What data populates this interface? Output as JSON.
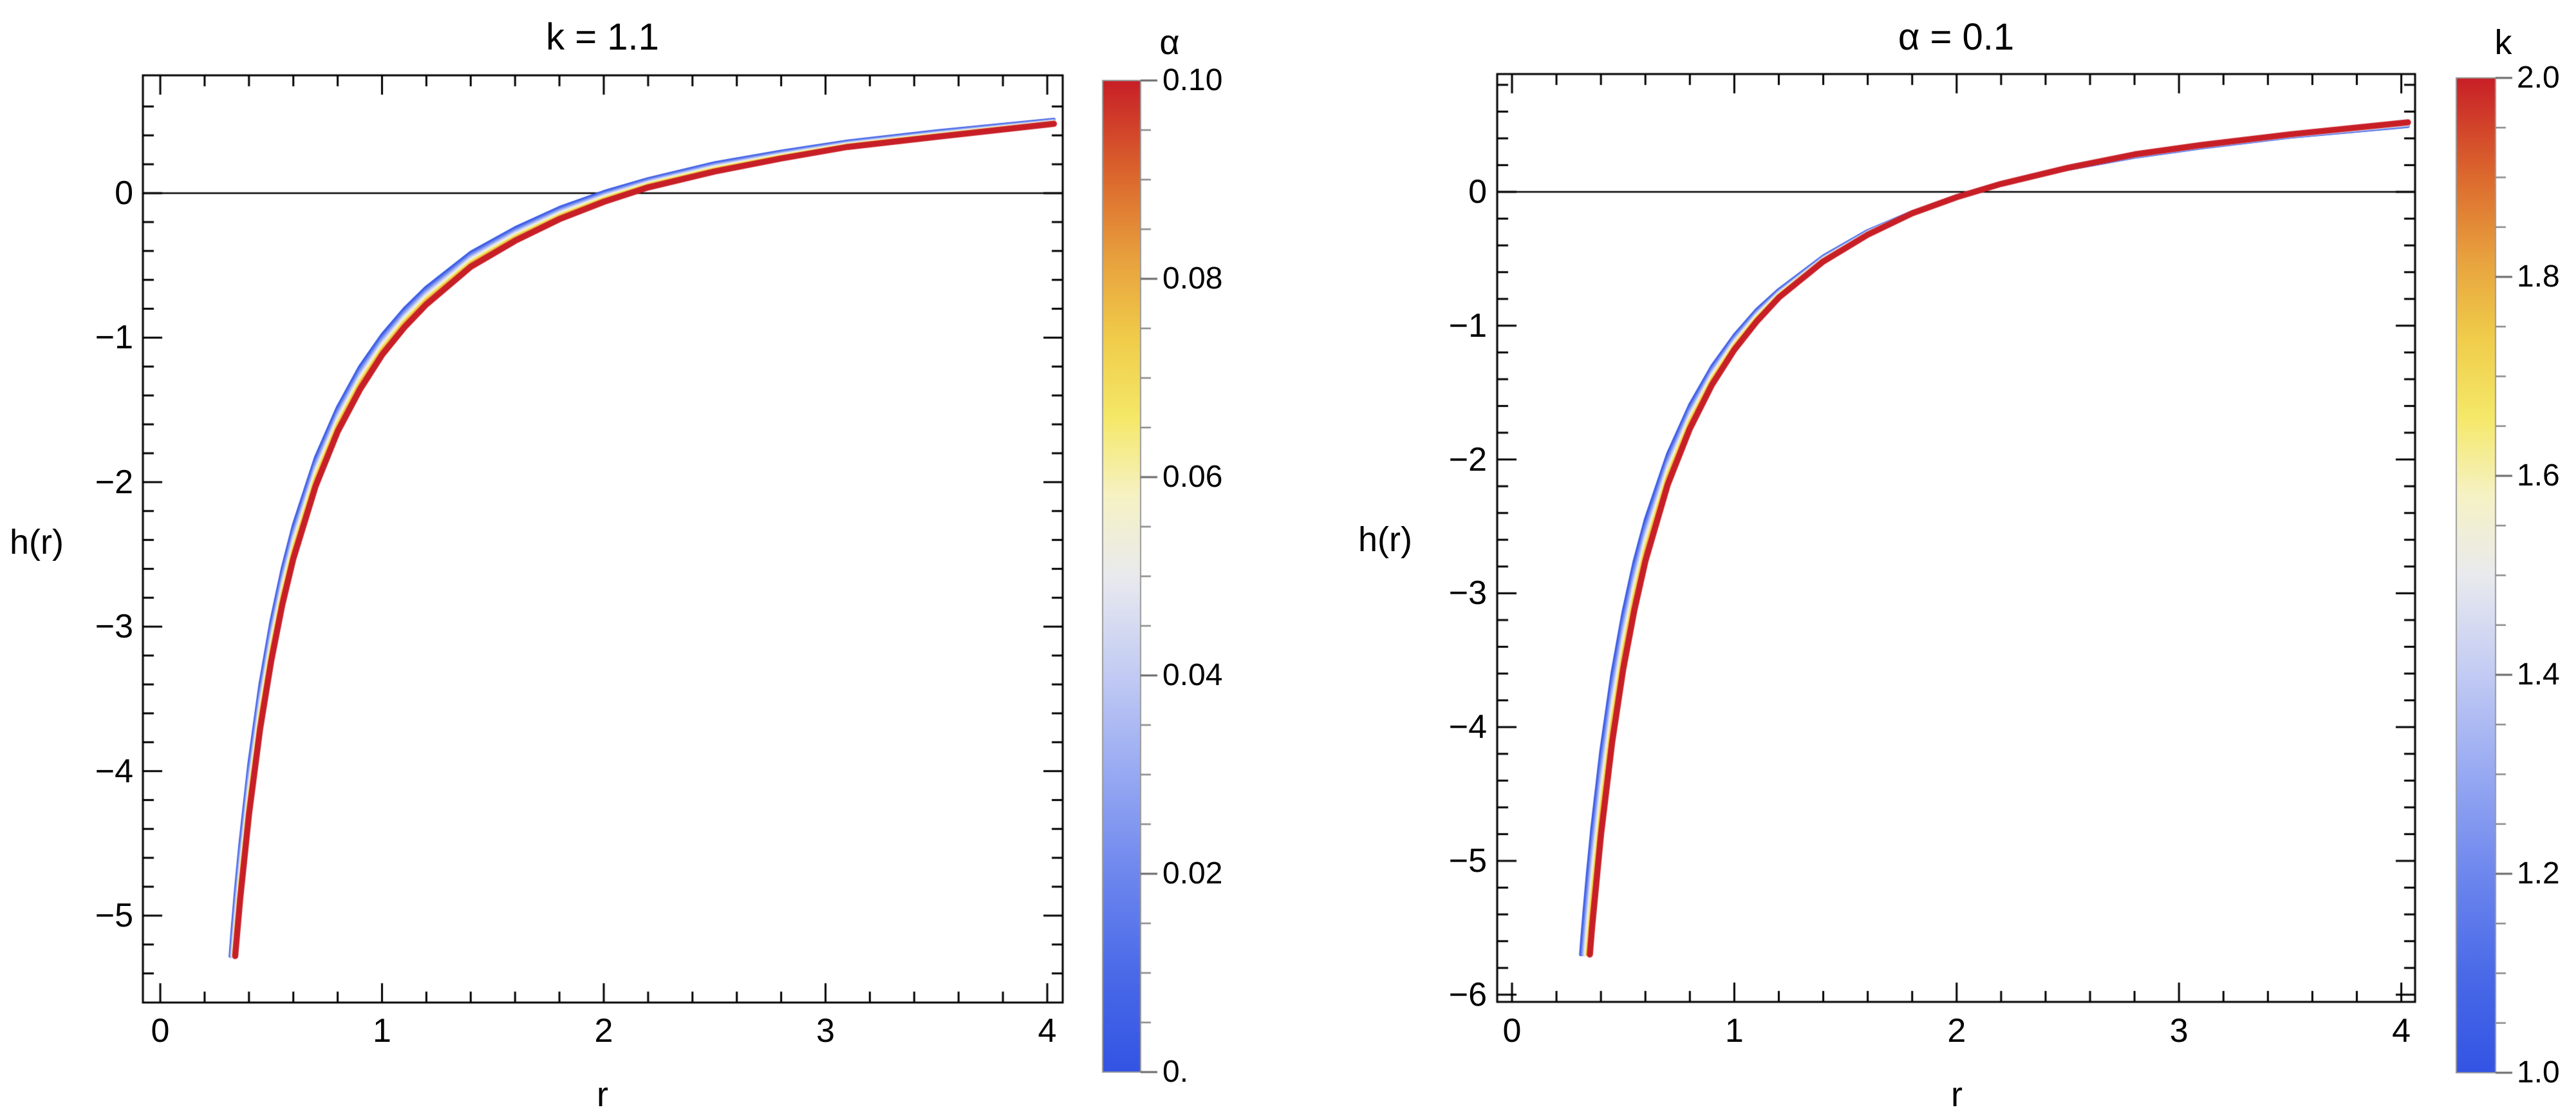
{
  "figure": {
    "background": "#ffffff",
    "text_color": "#000000",
    "colormap": [
      [
        0.0,
        "#3354e3"
      ],
      [
        0.1,
        "#4a6ae8"
      ],
      [
        0.2,
        "#6e87ee"
      ],
      [
        0.3,
        "#97a9f2"
      ],
      [
        0.4,
        "#c2cbf4"
      ],
      [
        0.5,
        "#e9eaee"
      ],
      [
        0.58,
        "#f6f2c5"
      ],
      [
        0.66,
        "#f5e868"
      ],
      [
        0.74,
        "#f0cc4a"
      ],
      [
        0.82,
        "#e8a13e"
      ],
      [
        0.9,
        "#dc6a2e"
      ],
      [
        1.0,
        "#c81f27"
      ]
    ],
    "panels": [
      {
        "id": "left",
        "title": "k = 1.1",
        "x_label": "r",
        "y_label": "h(r)",
        "x_tick_values": [
          0,
          1,
          2,
          3,
          4
        ],
        "x_tick_labels": [
          "0",
          "1",
          "2",
          "3",
          "4"
        ],
        "y_tick_values": [
          0,
          -1,
          -2,
          -3,
          -4,
          -5
        ],
        "y_tick_labels": [
          "0",
          "−1",
          "−2",
          "−3",
          "−4",
          "−5"
        ],
        "colorbar": {
          "label": "α",
          "range": [
            0,
            0.1
          ],
          "tick_values": [
            0.1,
            0.08,
            0.06,
            0.04,
            0.02,
            0
          ],
          "tick_labels": [
            "0.10",
            "0.08",
            "0.06",
            "0.04",
            "0.02",
            "0."
          ]
        },
        "chart_data": {
          "type": "line",
          "title": "k = 1.1",
          "xlabel": "r",
          "ylabel": "h(r)",
          "xlim": [
            -0.08,
            4.07
          ],
          "ylim": [
            -5.6,
            0.81
          ],
          "zero_line": 0,
          "clip_min_h": -5.28,
          "bundle_note": "continuum of nearly-overlapping curves for α from 0 (blue) to 0.1 (red), colored by colorbar",
          "x": [
            0.305,
            0.315,
            0.325,
            0.34,
            0.36,
            0.4,
            0.45,
            0.5,
            0.55,
            0.6,
            0.7,
            0.8,
            0.9,
            1.0,
            1.1,
            1.2,
            1.4,
            1.6,
            1.8,
            2.0,
            2.2,
            2.5,
            2.8,
            3.1,
            3.5,
            4.03
          ],
          "series": [
            {
              "name": "α = 0",
              "color": "#3354e3",
              "values": [
                -5.49,
                -5.29,
                -5.09,
                -4.82,
                -4.5,
                -3.95,
                -3.4,
                -2.96,
                -2.6,
                -2.3,
                -1.83,
                -1.48,
                -1.2,
                -0.98,
                -0.8,
                -0.65,
                -0.41,
                -0.24,
                -0.1,
                0.01,
                0.1,
                0.21,
                0.29,
                0.36,
                0.43,
                0.51
              ]
            },
            {
              "name": "α = 0.1",
              "color": "#c81f27",
              "values": [
                -5.95,
                -5.73,
                -5.52,
                -5.24,
                -4.89,
                -4.3,
                -3.71,
                -3.24,
                -2.85,
                -2.53,
                -2.03,
                -1.65,
                -1.36,
                -1.12,
                -0.93,
                -0.77,
                -0.51,
                -0.33,
                -0.18,
                -0.06,
                0.04,
                0.15,
                0.24,
                0.32,
                0.39,
                0.48
              ]
            }
          ]
        }
      },
      {
        "id": "right",
        "title": "α = 0.1",
        "x_label": "r",
        "y_label": "h(r)",
        "x_tick_values": [
          0,
          1,
          2,
          3,
          4
        ],
        "x_tick_labels": [
          "0",
          "1",
          "2",
          "3",
          "4"
        ],
        "y_tick_values": [
          0,
          -1,
          -2,
          -3,
          -4,
          -5,
          -6
        ],
        "y_tick_labels": [
          "0",
          "−1",
          "−2",
          "−3",
          "−4",
          "−5",
          "−6"
        ],
        "colorbar": {
          "label": "k",
          "range": [
            1.0,
            2.0
          ],
          "tick_values": [
            2.0,
            1.8,
            1.6,
            1.4,
            1.2,
            1.0
          ],
          "tick_labels": [
            "2.0",
            "1.8",
            "1.6",
            "1.4",
            "1.2",
            "1.0"
          ]
        },
        "chart_data": {
          "type": "line",
          "title": "α = 0.1",
          "xlabel": "r",
          "ylabel": "h(r)",
          "xlim": [
            -0.07,
            4.06
          ],
          "ylim": [
            -6.06,
            0.88
          ],
          "zero_line": 0,
          "clip_min_h": -5.7,
          "bundle_note": "continuum of nearly-overlapping curves for k from 1.0 (blue) to 2.0 (red), colored by colorbar",
          "x": [
            0.305,
            0.315,
            0.325,
            0.34,
            0.36,
            0.4,
            0.45,
            0.5,
            0.55,
            0.6,
            0.7,
            0.8,
            0.9,
            1.0,
            1.1,
            1.2,
            1.4,
            1.6,
            1.8,
            2.0,
            2.2,
            2.5,
            2.8,
            3.1,
            3.5,
            4.03
          ],
          "series": [
            {
              "name": "k = 1.0",
              "color": "#3354e3",
              "values": [
                -5.79,
                -5.57,
                -5.37,
                -5.09,
                -4.75,
                -4.18,
                -3.6,
                -3.14,
                -2.76,
                -2.45,
                -1.96,
                -1.59,
                -1.3,
                -1.07,
                -0.88,
                -0.73,
                -0.48,
                -0.29,
                -0.15,
                -0.04,
                0.06,
                0.17,
                0.26,
                0.33,
                0.41,
                0.49
              ]
            },
            {
              "name": "k = 2.0",
              "color": "#c81f27",
              "values": [
                -6.76,
                -6.5,
                -6.25,
                -5.91,
                -5.5,
                -4.81,
                -4.12,
                -3.57,
                -3.13,
                -2.76,
                -2.19,
                -1.77,
                -1.44,
                -1.18,
                -0.97,
                -0.79,
                -0.52,
                -0.32,
                -0.16,
                -0.04,
                0.06,
                0.18,
                0.28,
                0.35,
                0.43,
                0.52
              ]
            }
          ]
        }
      }
    ]
  }
}
